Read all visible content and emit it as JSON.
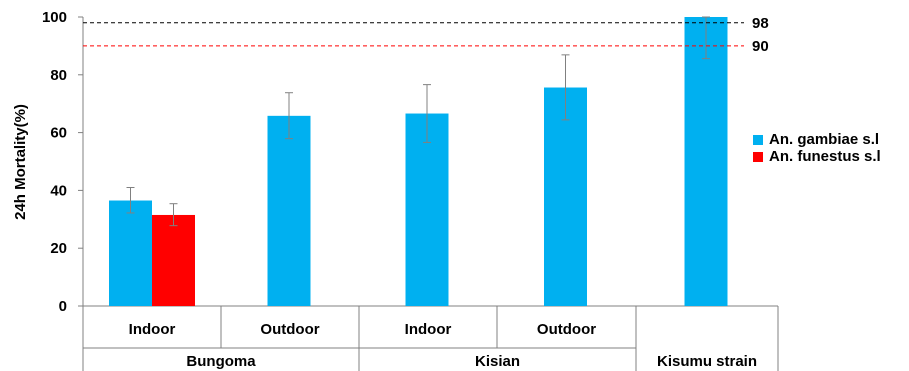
{
  "chart_data": {
    "type": "bar",
    "ylabel": "24h  Mortality(%)",
    "ylim": [
      0,
      100
    ],
    "yticks": [
      0,
      20,
      40,
      60,
      80,
      100
    ],
    "grid": false,
    "legend_position": "right",
    "groups": [
      {
        "label": "Bungoma",
        "categories": [
          "Indoor",
          "Outdoor"
        ]
      },
      {
        "label": "Kisian",
        "categories": [
          "Indoor",
          "Outdoor"
        ]
      },
      {
        "label": "Kisumu strain",
        "categories": [
          ""
        ]
      }
    ],
    "series": [
      {
        "name": "An. gambiae s.l",
        "color": "#00B0F0",
        "values": [
          36.5,
          65.8,
          66.6,
          75.6,
          100
        ],
        "error": [
          [
            32.2,
            41.0
          ],
          [
            57.9,
            73.8
          ],
          [
            56.6,
            76.6
          ],
          [
            64.4,
            86.9
          ],
          [
            85.6,
            100
          ]
        ]
      },
      {
        "name": "An. funestus s.l",
        "color": "#FF0000",
        "values": [
          31.5,
          null,
          null,
          null,
          null
        ],
        "error": [
          [
            27.8,
            35.4
          ],
          null,
          null,
          null,
          null
        ]
      }
    ],
    "reference_lines": [
      {
        "value": 98,
        "label": "98",
        "color": "#000000",
        "style": "dashed"
      },
      {
        "value": 90,
        "label": "90",
        "color": "#FF0000",
        "style": "dashed"
      }
    ]
  }
}
